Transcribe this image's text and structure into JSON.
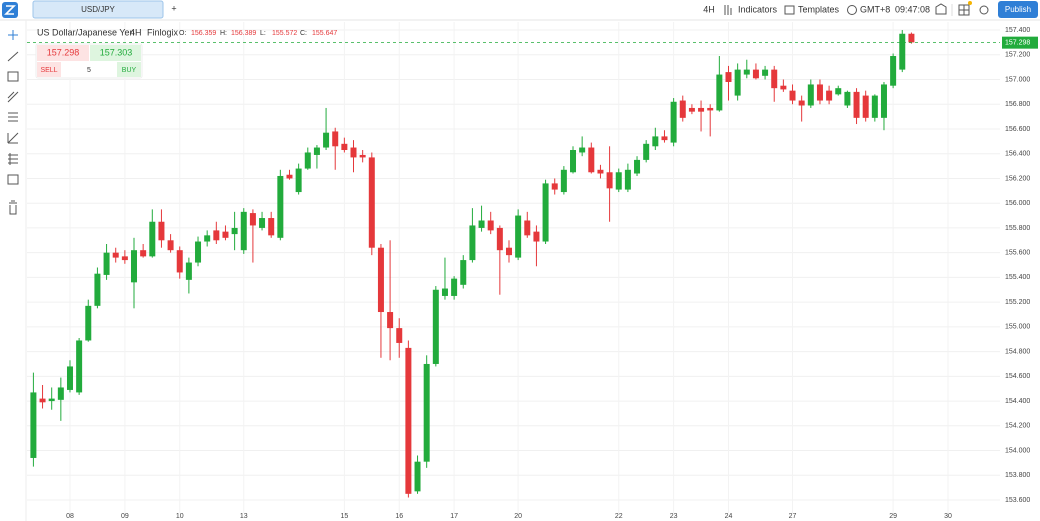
{
  "ui": {
    "tab": "USD/JPY",
    "new_tab": "+",
    "interval": "4H",
    "indicators": "Indicators",
    "templates": "Templates",
    "timezone": "GMT+8",
    "clock": "09:47:08",
    "publish": "Publish"
  },
  "header": {
    "symbol": "US Dollar/Japanese Yen",
    "interval": "4H",
    "source": "Finlogix",
    "o_label": "O:",
    "o": "156.359",
    "h_label": "H:",
    "h": "156.389",
    "l_label": "L:",
    "l": "155.572",
    "c_label": "C:",
    "c": "155.647"
  },
  "trade": {
    "sell_price": "157.298",
    "buy_price": "157.303",
    "sell": "SELL",
    "quantity": "5",
    "buy": "BUY"
  },
  "chart_data": {
    "type": "candlestick",
    "up_color": "#22ab3c",
    "down_color": "#e5383b",
    "grid": true,
    "categories": [
      null,
      null,
      null,
      null,
      "08",
      null,
      null,
      null,
      null,
      null,
      "09",
      null,
      null,
      null,
      null,
      null,
      "10",
      null,
      null,
      null,
      null,
      null,
      null,
      "13",
      null,
      null,
      null,
      null,
      null,
      null,
      null,
      null,
      null,
      null,
      "15",
      null,
      null,
      null,
      null,
      null,
      "16",
      null,
      null,
      null,
      null,
      null,
      "17",
      null,
      null,
      null,
      null,
      null,
      null,
      "20",
      null,
      null,
      null,
      null,
      null,
      null,
      null,
      null,
      null,
      null,
      "22",
      null,
      null,
      null,
      null,
      null,
      "23",
      null,
      null,
      null,
      null,
      null,
      "24",
      null,
      null,
      null,
      null,
      null,
      null,
      "27",
      null,
      null,
      null,
      null,
      null,
      null,
      null,
      null,
      null,
      null,
      "29",
      null,
      null,
      null,
      null,
      null,
      "30"
    ],
    "open": [
      153.94,
      154.42,
      154.4,
      154.41,
      154.49,
      154.47,
      154.89,
      155.17,
      155.42,
      155.6,
      155.57,
      155.36,
      155.62,
      155.57,
      155.85,
      155.7,
      155.62,
      155.38,
      155.52,
      155.69,
      155.78,
      155.77,
      155.75,
      155.62,
      155.92,
      155.8,
      155.88,
      155.72,
      156.23,
      156.09,
      156.28,
      156.39,
      156.45,
      156.58,
      156.48,
      156.45,
      156.39,
      156.37,
      155.64,
      155.12,
      154.99,
      154.83,
      153.67,
      153.91,
      154.7,
      155.25,
      155.25,
      155.34,
      155.54,
      155.8,
      155.86,
      155.8,
      155.64,
      155.56,
      155.86,
      155.77,
      155.69,
      156.16,
      156.09,
      156.25,
      156.41,
      156.45,
      156.27,
      156.25,
      156.11,
      156.11,
      156.24,
      156.35,
      156.46,
      156.54,
      156.49,
      156.83,
      156.77,
      156.77,
      156.77,
      156.75,
      157.06,
      156.87,
      157.04,
      157.08,
      157.03,
      157.08,
      156.95,
      156.91,
      156.83,
      156.79,
      156.96,
      156.91,
      156.88,
      156.79,
      156.9,
      156.87,
      156.69,
      156.69,
      156.95,
      157.08,
      157.37,
      null,
      null,
      null,
      null
    ],
    "high": [
      154.63,
      154.53,
      154.51,
      154.59,
      154.73,
      154.91,
      155.22,
      155.48,
      155.67,
      155.64,
      155.62,
      155.72,
      155.67,
      155.95,
      155.95,
      155.75,
      155.65,
      155.56,
      155.73,
      155.78,
      155.85,
      155.82,
      155.93,
      155.96,
      155.95,
      155.93,
      155.93,
      156.27,
      156.27,
      156.32,
      156.45,
      156.47,
      156.77,
      156.61,
      156.53,
      156.51,
      156.43,
      156.41,
      155.67,
      155.7,
      155.07,
      154.89,
      153.96,
      154.77,
      155.33,
      155.56,
      155.41,
      155.58,
      155.96,
      155.98,
      155.93,
      155.82,
      155.7,
      155.95,
      155.93,
      155.82,
      156.19,
      156.2,
      156.3,
      156.46,
      156.54,
      156.49,
      156.31,
      156.46,
      156.28,
      156.32,
      156.38,
      156.51,
      156.61,
      156.59,
      156.85,
      156.87,
      156.8,
      156.83,
      156.8,
      157.19,
      157.11,
      157.13,
      157.16,
      157.13,
      157.11,
      157.11,
      157.0,
      156.96,
      156.87,
      157.0,
      157.0,
      156.95,
      156.95,
      156.91,
      156.93,
      156.91,
      156.88,
      156.98,
      157.21,
      157.4,
      157.38,
      null,
      null,
      null,
      null
    ],
    "low": [
      153.87,
      154.34,
      154.33,
      154.24,
      154.47,
      154.45,
      154.88,
      155.15,
      155.38,
      155.52,
      155.51,
      155.15,
      155.56,
      155.56,
      155.64,
      155.6,
      155.39,
      155.27,
      155.49,
      155.65,
      155.67,
      155.7,
      155.62,
      155.59,
      155.52,
      155.78,
      155.72,
      155.7,
      156.19,
      156.07,
      156.27,
      156.28,
      156.43,
      156.27,
      156.41,
      156.25,
      156.33,
      155.58,
      154.75,
      154.73,
      154.75,
      153.62,
      153.65,
      153.86,
      154.68,
      155.22,
      155.22,
      155.31,
      155.52,
      155.77,
      155.75,
      155.26,
      155.52,
      155.54,
      155.72,
      155.49,
      155.67,
      156.07,
      156.07,
      156.24,
      156.38,
      156.24,
      156.2,
      155.85,
      156.09,
      156.09,
      156.22,
      156.33,
      156.43,
      156.49,
      156.46,
      156.66,
      156.72,
      156.58,
      156.54,
      156.74,
      156.83,
      156.83,
      157.01,
      157.0,
      157.0,
      156.82,
      156.9,
      156.8,
      156.66,
      156.77,
      156.8,
      156.8,
      156.87,
      156.77,
      156.64,
      156.66,
      156.66,
      156.59,
      156.93,
      157.06,
      157.29,
      null,
      null,
      null,
      null
    ],
    "close": [
      154.47,
      154.39,
      154.42,
      154.51,
      154.68,
      154.89,
      155.17,
      155.43,
      155.6,
      155.56,
      155.54,
      155.62,
      155.57,
      155.85,
      155.7,
      155.62,
      155.44,
      155.52,
      155.69,
      155.74,
      155.7,
      155.72,
      155.8,
      155.93,
      155.82,
      155.88,
      155.74,
      156.22,
      156.2,
      156.28,
      156.41,
      156.45,
      156.57,
      156.46,
      156.43,
      156.37,
      156.37,
      155.64,
      155.12,
      154.99,
      154.87,
      153.65,
      153.91,
      154.7,
      155.3,
      155.31,
      155.39,
      155.54,
      155.82,
      155.86,
      155.78,
      155.62,
      155.58,
      155.9,
      155.74,
      155.69,
      156.16,
      156.11,
      156.27,
      156.43,
      156.45,
      156.25,
      156.24,
      156.12,
      156.25,
      156.27,
      156.35,
      156.48,
      156.54,
      156.51,
      156.82,
      156.69,
      156.74,
      156.74,
      156.75,
      157.04,
      156.98,
      157.08,
      157.08,
      157.01,
      157.08,
      156.93,
      156.92,
      156.83,
      156.79,
      156.96,
      156.83,
      156.83,
      156.93,
      156.9,
      156.69,
      156.69,
      156.87,
      156.96,
      157.19,
      157.37,
      157.3,
      null,
      null,
      null,
      null
    ],
    "ylim": [
      153.495,
      157.465
    ],
    "yticks": [
      {
        "value": 153.6,
        "label": "153.600"
      },
      {
        "value": 153.8,
        "label": "153.800"
      },
      {
        "value": 154.0,
        "label": "154.000"
      },
      {
        "value": 154.2,
        "label": "154.200"
      },
      {
        "value": 154.4,
        "label": "154.400"
      },
      {
        "value": 154.6,
        "label": "154.600"
      },
      {
        "value": 154.8,
        "label": "154.800"
      },
      {
        "value": 155.0,
        "label": "155.000"
      },
      {
        "value": 155.2,
        "label": "155.200"
      },
      {
        "value": 155.4,
        "label": "155.400"
      },
      {
        "value": 155.6,
        "label": "155.600"
      },
      {
        "value": 155.8,
        "label": "155.800"
      },
      {
        "value": 156.0,
        "label": "156.000"
      },
      {
        "value": 156.2,
        "label": "156.200"
      },
      {
        "value": 156.4,
        "label": "156.400"
      },
      {
        "value": 156.6,
        "label": "156.600"
      },
      {
        "value": 156.8,
        "label": "156.800"
      },
      {
        "value": 157.0,
        "label": "157.000"
      },
      {
        "value": 157.2,
        "label": "157.200"
      },
      {
        "value": 157.4,
        "label": "157.400"
      }
    ],
    "last_price": {
      "value": 157.298,
      "label": "157.298"
    }
  }
}
